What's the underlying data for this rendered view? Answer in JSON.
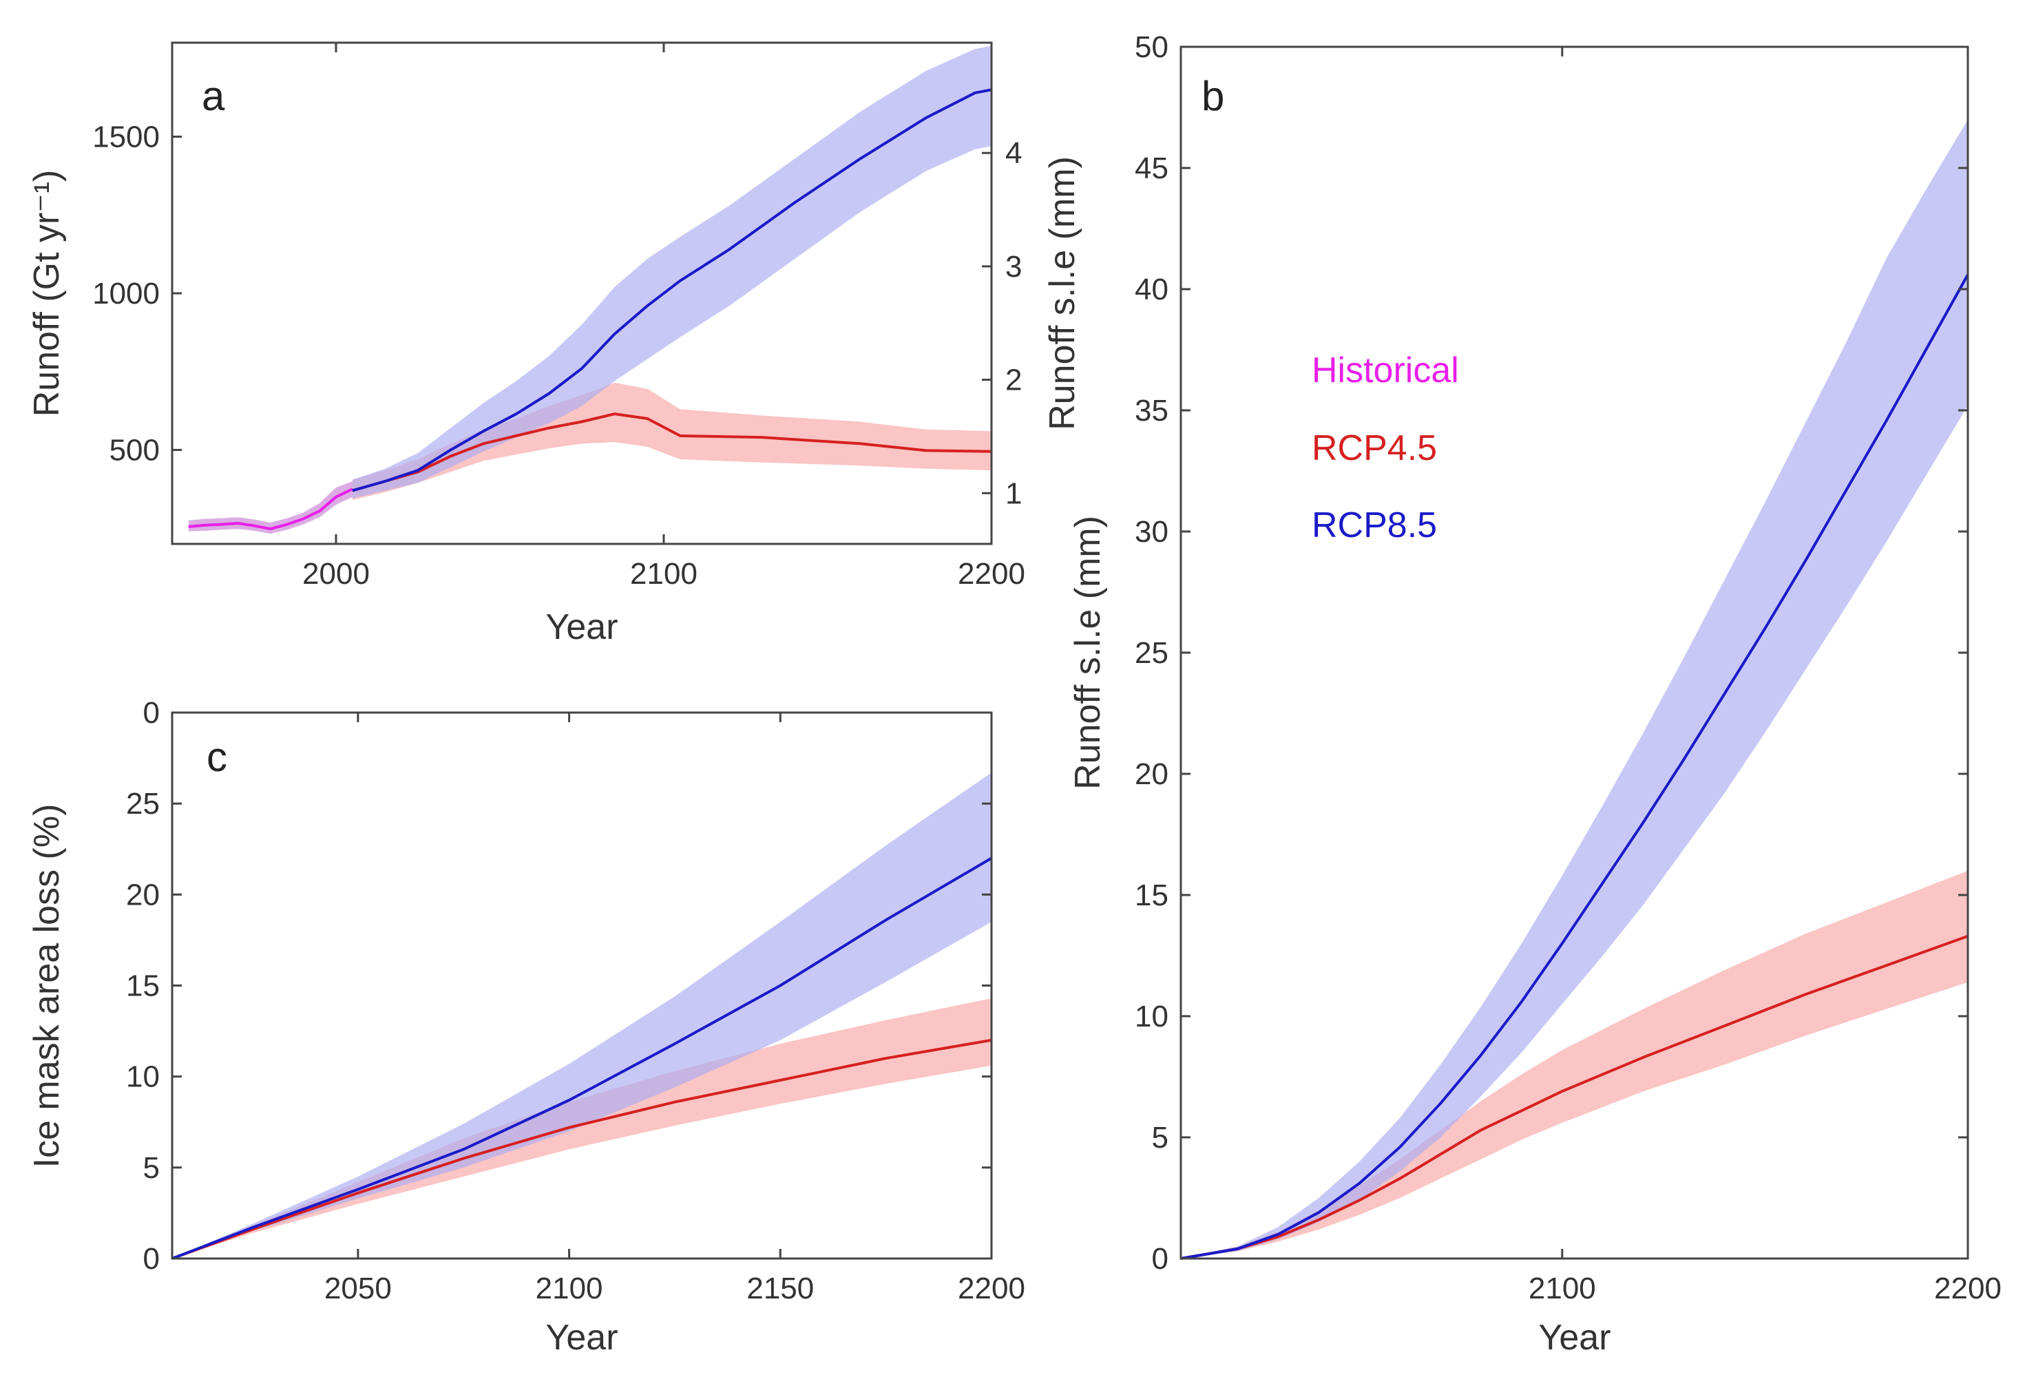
{
  "colors": {
    "historical": "#e81fe8",
    "rcp45": "#d62020",
    "rcp85": "#1a1ac8",
    "rcp45_band": "#f7a6a4",
    "rcp85_band": "#aaaaf2",
    "historical_band": "#c77fd6"
  },
  "legend": {
    "historical": "Historical",
    "rcp45": "RCP4.5",
    "rcp85": "RCP8.5"
  },
  "chart_data": [
    {
      "id": "a",
      "type": "line",
      "panel_label": "a",
      "xlabel": "Year",
      "ylabel": "Runoff (Gt yr⁻¹)",
      "ylabel_right": "Runoff s.l.e (mm)",
      "xlim": [
        1950,
        2200
      ],
      "ylim": [
        200,
        1800
      ],
      "xticks": [
        2000,
        2100,
        2200
      ],
      "yticks": [
        500,
        1000,
        1500
      ],
      "yticks_right": [
        1,
        2,
        3,
        4
      ],
      "series": [
        {
          "name": "Historical",
          "color_key": "historical",
          "x": [
            1955,
            1960,
            1965,
            1970,
            1975,
            1980,
            1985,
            1990,
            1995,
            2000,
            2005
          ],
          "values": [
            255,
            260,
            262,
            266,
            258,
            248,
            262,
            280,
            305,
            350,
            375
          ],
          "lower": [
            240,
            242,
            245,
            248,
            242,
            232,
            245,
            262,
            285,
            325,
            350
          ],
          "upper": [
            275,
            280,
            282,
            285,
            278,
            268,
            282,
            300,
            330,
            380,
            400
          ]
        },
        {
          "name": "RCP4.5",
          "color_key": "rcp45",
          "x": [
            2005,
            2015,
            2025,
            2035,
            2045,
            2055,
            2065,
            2075,
            2085,
            2095,
            2105,
            2130,
            2160,
            2180,
            2200
          ],
          "values": [
            370,
            400,
            430,
            480,
            520,
            545,
            570,
            590,
            615,
            600,
            545,
            540,
            520,
            498,
            495
          ],
          "lower": [
            340,
            365,
            395,
            430,
            465,
            485,
            505,
            520,
            525,
            510,
            470,
            460,
            450,
            440,
            435
          ],
          "upper": [
            405,
            435,
            470,
            520,
            565,
            600,
            640,
            675,
            715,
            695,
            630,
            610,
            590,
            565,
            560
          ]
        },
        {
          "name": "RCP8.5",
          "color_key": "rcp85",
          "x": [
            2005,
            2015,
            2025,
            2035,
            2045,
            2055,
            2065,
            2075,
            2085,
            2095,
            2105,
            2120,
            2140,
            2160,
            2180,
            2195,
            2200
          ],
          "values": [
            370,
            400,
            435,
            500,
            560,
            615,
            680,
            760,
            870,
            960,
            1040,
            1140,
            1290,
            1430,
            1560,
            1640,
            1650
          ],
          "lower": [
            345,
            370,
            395,
            445,
            495,
            540,
            585,
            640,
            720,
            790,
            860,
            960,
            1110,
            1260,
            1390,
            1460,
            1470
          ],
          "upper": [
            405,
            440,
            490,
            570,
            650,
            720,
            800,
            900,
            1020,
            1110,
            1180,
            1280,
            1430,
            1580,
            1710,
            1780,
            1790
          ]
        }
      ]
    },
    {
      "id": "b",
      "type": "line",
      "panel_label": "b",
      "xlabel": "Year",
      "ylabel": "Runoff s.l.e (mm)",
      "xlim": [
        2006,
        2200
      ],
      "ylim": [
        0,
        50
      ],
      "xticks": [
        2100,
        2200
      ],
      "yticks": [
        0,
        5,
        10,
        15,
        20,
        25,
        30,
        35,
        40,
        45,
        50
      ],
      "series": [
        {
          "name": "RCP4.5",
          "color_key": "rcp45",
          "x": [
            2006,
            2020,
            2030,
            2040,
            2050,
            2060,
            2070,
            2080,
            2090,
            2100,
            2120,
            2140,
            2160,
            2180,
            2200
          ],
          "values": [
            0,
            0.4,
            0.9,
            1.6,
            2.4,
            3.3,
            4.3,
            5.3,
            6.1,
            6.9,
            8.3,
            9.6,
            10.9,
            12.1,
            13.3
          ],
          "lower": [
            0,
            0.3,
            0.7,
            1.2,
            1.8,
            2.5,
            3.3,
            4.1,
            4.9,
            5.6,
            6.9,
            8.0,
            9.2,
            10.3,
            11.4
          ],
          "upper": [
            0,
            0.5,
            1.1,
            2.0,
            3.0,
            4.1,
            5.3,
            6.5,
            7.6,
            8.6,
            10.3,
            11.9,
            13.4,
            14.7,
            16.0
          ]
        },
        {
          "name": "RCP8.5",
          "color_key": "rcp85",
          "x": [
            2006,
            2020,
            2030,
            2040,
            2050,
            2060,
            2070,
            2080,
            2090,
            2100,
            2110,
            2120,
            2130,
            2140,
            2150,
            2160,
            2170,
            2180,
            2190,
            2200
          ],
          "values": [
            0,
            0.4,
            1.0,
            1.9,
            3.1,
            4.6,
            6.4,
            8.4,
            10.6,
            13.0,
            15.5,
            18.0,
            20.6,
            23.3,
            26.0,
            28.8,
            31.7,
            34.6,
            37.6,
            40.6
          ],
          "lower": [
            0,
            0.3,
            0.8,
            1.5,
            2.4,
            3.6,
            5.0,
            6.7,
            8.5,
            10.5,
            12.5,
            14.6,
            16.9,
            19.2,
            21.7,
            24.3,
            26.9,
            29.6,
            32.4,
            35.2
          ],
          "upper": [
            0,
            0.5,
            1.3,
            2.5,
            4.0,
            5.8,
            8.0,
            10.4,
            13.0,
            15.8,
            18.7,
            21.7,
            24.8,
            28.0,
            31.2,
            34.5,
            37.8,
            41.3,
            44.2,
            47.0
          ]
        }
      ]
    },
    {
      "id": "c",
      "type": "line",
      "panel_label": "c",
      "xlabel": "Year",
      "ylabel": "Ice mask area loss (%)",
      "xlim": [
        2006,
        2200
      ],
      "ylim": [
        0,
        30
      ],
      "xticks": [
        2050,
        2100,
        2150,
        2200
      ],
      "yticks": [
        0,
        5,
        10,
        15,
        20,
        25
      ],
      "top_tick_label": "0",
      "series": [
        {
          "name": "RCP4.5",
          "color_key": "rcp45",
          "x": [
            2006,
            2025,
            2050,
            2075,
            2100,
            2125,
            2150,
            2175,
            2200
          ],
          "values": [
            0,
            1.6,
            3.6,
            5.5,
            7.2,
            8.6,
            9.8,
            11.0,
            12.0
          ],
          "lower": [
            0,
            1.4,
            3.0,
            4.5,
            6.0,
            7.3,
            8.5,
            9.6,
            10.6
          ],
          "upper": [
            0,
            1.8,
            4.2,
            6.6,
            8.6,
            10.3,
            11.8,
            13.1,
            14.3
          ]
        },
        {
          "name": "RCP8.5",
          "color_key": "rcp85",
          "x": [
            2006,
            2025,
            2050,
            2075,
            2100,
            2125,
            2150,
            2175,
            2200
          ],
          "values": [
            0,
            1.7,
            3.8,
            6.0,
            8.7,
            11.8,
            15.0,
            18.6,
            22.0
          ],
          "lower": [
            0,
            1.5,
            3.3,
            5.0,
            7.0,
            9.4,
            12.0,
            15.2,
            18.5
          ],
          "upper": [
            0,
            1.9,
            4.5,
            7.4,
            10.7,
            14.4,
            18.5,
            22.7,
            26.7
          ]
        }
      ]
    }
  ]
}
